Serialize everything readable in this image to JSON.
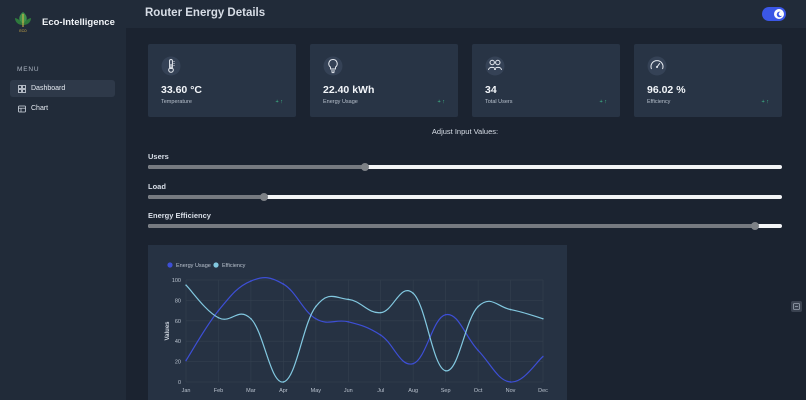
{
  "app": {
    "name": "Eco-Intelligence",
    "logo_text": "ECO"
  },
  "sidebar": {
    "menu_heading": "MENU",
    "items": [
      {
        "label": "Dashboard",
        "icon": "grid-icon",
        "active": true
      },
      {
        "label": "Chart",
        "icon": "table-icon",
        "active": false
      }
    ]
  },
  "header": {
    "title": "Router Energy Details",
    "theme_toggle": {
      "state": "dark",
      "icon": "moon-icon"
    }
  },
  "stats": [
    {
      "value": "33.60 °C",
      "label": "Temperature",
      "icon": "thermometer-icon",
      "trend": "+ ↑"
    },
    {
      "value": "22.40 kWh",
      "label": "Energy Usage",
      "icon": "lightbulb-icon",
      "trend": "+ ↑"
    },
    {
      "value": "34",
      "label": "Total Users",
      "icon": "users-icon",
      "trend": "+ ↑"
    },
    {
      "value": "96.02 %",
      "label": "Efficiency",
      "icon": "gauge-icon",
      "trend": "+ ↑"
    }
  ],
  "adjust": {
    "title": "Adjust Input Values:",
    "sliders": [
      {
        "label": "Users",
        "fraction": 0.343
      },
      {
        "label": "Load",
        "fraction": 0.183
      },
      {
        "label": "Energy Efficiency",
        "fraction": 0.957
      }
    ]
  },
  "colors": {
    "accent": "#3b57e6",
    "series_energy": "#3d4fd6",
    "series_efficiency": "#82c8e0",
    "trend": "#3fbf8c"
  },
  "chart_data": {
    "type": "line",
    "categories": [
      "Jan",
      "Feb",
      "Mar",
      "Apr",
      "May",
      "Jun",
      "Jul",
      "Aug",
      "Sep",
      "Oct",
      "Nov",
      "Dec"
    ],
    "series": [
      {
        "name": "Energy Usage",
        "values": [
          21,
          70,
          99,
          96,
          62,
          59,
          46,
          18,
          66,
          31,
          0,
          25
        ]
      },
      {
        "name": "Efficiency",
        "values": [
          95,
          63,
          62,
          0,
          74,
          81,
          68,
          87,
          11,
          74,
          71,
          62
        ]
      }
    ],
    "ylabel": "Values",
    "yticks": [
      0,
      20,
      40,
      60,
      80,
      100
    ],
    "ylim": [
      0,
      100
    ],
    "legend": "top-left",
    "grid": true
  }
}
